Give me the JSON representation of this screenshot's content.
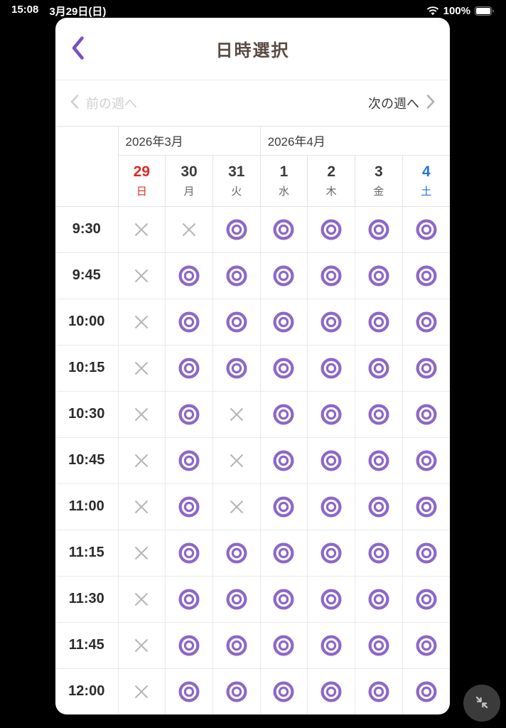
{
  "status_bar": {
    "time": "15:08",
    "date": "3月29日(日)",
    "battery": "100%"
  },
  "header": {
    "title": "日時選択"
  },
  "week_nav": {
    "prev_label": "前の週へ",
    "next_label": "次の週へ",
    "prev_enabled": false,
    "next_enabled": true
  },
  "calendar": {
    "months": [
      {
        "label": "2026年3月",
        "span": 3
      },
      {
        "label": "2026年4月",
        "span": 4
      }
    ],
    "days": [
      {
        "date": "29",
        "weekday": "日",
        "type": "sunday"
      },
      {
        "date": "30",
        "weekday": "月",
        "type": "weekday"
      },
      {
        "date": "31",
        "weekday": "火",
        "type": "weekday"
      },
      {
        "date": "1",
        "weekday": "水",
        "type": "weekday"
      },
      {
        "date": "2",
        "weekday": "木",
        "type": "weekday"
      },
      {
        "date": "3",
        "weekday": "金",
        "type": "weekday"
      },
      {
        "date": "4",
        "weekday": "土",
        "type": "saturday"
      }
    ],
    "rows": [
      {
        "time": "9:30",
        "slots": [
          "x",
          "x",
          "o",
          "o",
          "o",
          "o",
          "o"
        ]
      },
      {
        "time": "9:45",
        "slots": [
          "x",
          "o",
          "o",
          "o",
          "o",
          "o",
          "o"
        ]
      },
      {
        "time": "10:00",
        "slots": [
          "x",
          "o",
          "o",
          "o",
          "o",
          "o",
          "o"
        ]
      },
      {
        "time": "10:15",
        "slots": [
          "x",
          "o",
          "o",
          "o",
          "o",
          "o",
          "o"
        ]
      },
      {
        "time": "10:30",
        "slots": [
          "x",
          "o",
          "x",
          "o",
          "o",
          "o",
          "o"
        ]
      },
      {
        "time": "10:45",
        "slots": [
          "x",
          "o",
          "x",
          "o",
          "o",
          "o",
          "o"
        ]
      },
      {
        "time": "11:00",
        "slots": [
          "x",
          "o",
          "x",
          "o",
          "o",
          "o",
          "o"
        ]
      },
      {
        "time": "11:15",
        "slots": [
          "x",
          "o",
          "o",
          "o",
          "o",
          "o",
          "o"
        ]
      },
      {
        "time": "11:30",
        "slots": [
          "x",
          "o",
          "o",
          "o",
          "o",
          "o",
          "o"
        ]
      },
      {
        "time": "11:45",
        "slots": [
          "x",
          "o",
          "o",
          "o",
          "o",
          "o",
          "o"
        ]
      },
      {
        "time": "12:00",
        "slots": [
          "x",
          "o",
          "o",
          "o",
          "o",
          "o",
          "o"
        ]
      }
    ],
    "symbols": {
      "available": "double-circle",
      "unavailable": "cross"
    }
  },
  "icons": {
    "back": "chevron-left-icon",
    "prev": "chevron-left-icon",
    "next": "chevron-right-icon",
    "wifi": "wifi-icon",
    "battery": "battery-full-icon",
    "fab": "collapse-arrows-icon"
  },
  "colors": {
    "accent_purple": "#7a52bd",
    "circle_purple": "#8d67c8",
    "sunday_red": "#d92b25",
    "saturday_blue": "#2272d9",
    "unavailable_gray": "#b5b5b5",
    "title_brown": "#594a42"
  }
}
